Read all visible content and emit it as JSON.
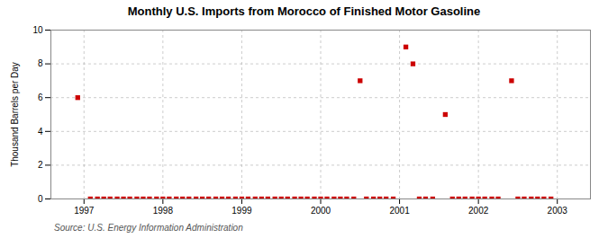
{
  "chart_data": {
    "type": "scatter",
    "title": "Monthly U.S. Imports from Morocco of Finished Motor Gasoline",
    "ylabel": "Thousand Barrels per Day",
    "source": "Source: U.S. Energy Information Administration",
    "color": "#cc0000",
    "marker": "square",
    "grid": true,
    "xlim": [
      1996.58,
      2003.42
    ],
    "xticks": [
      1997,
      1998,
      1999,
      2000,
      2001,
      2002,
      2003
    ],
    "ylim": [
      0,
      10
    ],
    "yticks": [
      0,
      2,
      4,
      6,
      8,
      10
    ],
    "x": [
      1996.92,
      1997.08,
      1997.17,
      1997.25,
      1997.33,
      1997.42,
      1997.5,
      1997.58,
      1997.67,
      1997.75,
      1997.83,
      1997.92,
      1998.0,
      1998.08,
      1998.17,
      1998.25,
      1998.33,
      1998.42,
      1998.5,
      1998.58,
      1998.67,
      1998.75,
      1998.83,
      1998.92,
      1999.0,
      1999.08,
      1999.17,
      1999.25,
      1999.33,
      1999.42,
      1999.5,
      1999.58,
      1999.67,
      1999.75,
      1999.83,
      1999.92,
      2000.0,
      2000.08,
      2000.17,
      2000.25,
      2000.33,
      2000.42,
      2000.5,
      2000.58,
      2000.67,
      2000.75,
      2000.83,
      2000.92,
      2001.08,
      2001.17,
      2001.25,
      2001.33,
      2001.42,
      2001.58,
      2001.67,
      2001.75,
      2001.83,
      2001.92,
      2002.0,
      2002.08,
      2002.17,
      2002.25,
      2002.42,
      2002.5,
      2002.58,
      2002.67,
      2002.75,
      2002.83,
      2002.92
    ],
    "values": [
      6,
      0,
      0,
      0,
      0,
      0,
      0,
      0,
      0,
      0,
      0,
      0,
      0,
      0,
      0,
      0,
      0,
      0,
      0,
      0,
      0,
      0,
      0,
      0,
      0,
      0,
      0,
      0,
      0,
      0,
      0,
      0,
      0,
      0,
      0,
      0,
      0,
      0,
      0,
      0,
      0,
      0,
      7,
      0,
      0,
      0,
      0,
      0,
      9,
      8,
      0,
      0,
      0,
      5,
      0,
      0,
      0,
      0,
      0,
      0,
      0,
      0,
      7,
      0,
      0,
      0,
      0,
      0,
      0
    ]
  }
}
